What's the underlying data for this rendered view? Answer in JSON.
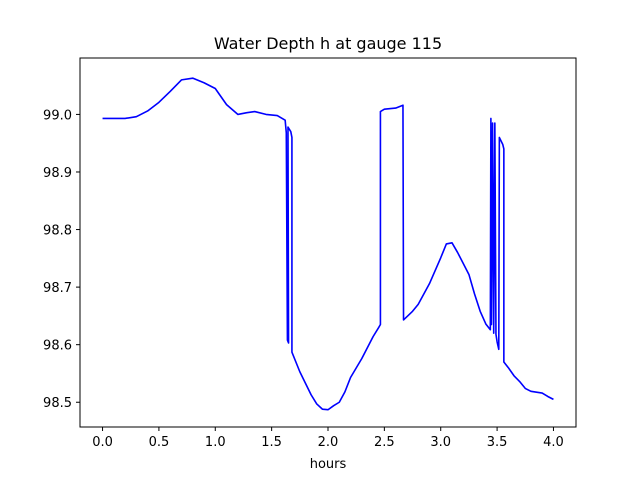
{
  "chart_data": {
    "type": "line",
    "title": "Water Depth h at gauge 115",
    "xlabel": "hours",
    "ylabel": "",
    "xlim": [
      -0.2,
      4.2
    ],
    "ylim": [
      98.457,
      99.098
    ],
    "xticks": [
      0.0,
      0.5,
      1.0,
      1.5,
      2.0,
      2.5,
      3.0,
      3.5,
      4.0
    ],
    "xtick_labels": [
      "0.0",
      "0.5",
      "1.0",
      "1.5",
      "2.0",
      "2.5",
      "3.0",
      "3.5",
      "4.0"
    ],
    "yticks": [
      98.5,
      98.6,
      98.7,
      98.8,
      98.9,
      99.0
    ],
    "ytick_labels": [
      "98.5",
      "98.6",
      "98.7",
      "98.8",
      "98.9",
      "99.0"
    ],
    "grid": false,
    "series": [
      {
        "color": "#0000ff",
        "points": [
          [
            0.0,
            98.993
          ],
          [
            0.1,
            98.993
          ],
          [
            0.2,
            98.993
          ],
          [
            0.3,
            98.996
          ],
          [
            0.4,
            99.006
          ],
          [
            0.5,
            99.021
          ],
          [
            0.6,
            99.04
          ],
          [
            0.7,
            99.06
          ],
          [
            0.8,
            99.063
          ],
          [
            0.9,
            99.055
          ],
          [
            1.0,
            99.045
          ],
          [
            1.1,
            99.017
          ],
          [
            1.2,
            99.0
          ],
          [
            1.28,
            99.003
          ],
          [
            1.35,
            99.005
          ],
          [
            1.45,
            99.0
          ],
          [
            1.55,
            98.998
          ],
          [
            1.62,
            98.99
          ],
          [
            1.63,
            98.968
          ],
          [
            1.64,
            98.608
          ],
          [
            1.65,
            98.603
          ],
          [
            1.645,
            98.978
          ],
          [
            1.67,
            98.97
          ],
          [
            1.68,
            98.96
          ],
          [
            1.68,
            98.587
          ],
          [
            1.75,
            98.553
          ],
          [
            1.8,
            98.533
          ],
          [
            1.85,
            98.513
          ],
          [
            1.9,
            98.497
          ],
          [
            1.95,
            98.488
          ],
          [
            2.0,
            98.487
          ],
          [
            2.05,
            98.494
          ],
          [
            2.1,
            98.5
          ],
          [
            2.15,
            98.518
          ],
          [
            2.2,
            98.543
          ],
          [
            2.3,
            98.576
          ],
          [
            2.4,
            98.614
          ],
          [
            2.45,
            98.63
          ],
          [
            2.465,
            98.635
          ],
          [
            2.465,
            99.005
          ],
          [
            2.5,
            99.009
          ],
          [
            2.6,
            99.011
          ],
          [
            2.665,
            99.016
          ],
          [
            2.67,
            98.643
          ],
          [
            2.75,
            98.658
          ],
          [
            2.8,
            98.67
          ],
          [
            2.9,
            98.706
          ],
          [
            3.0,
            98.751
          ],
          [
            3.05,
            98.775
          ],
          [
            3.1,
            98.777
          ],
          [
            3.15,
            98.76
          ],
          [
            3.2,
            98.741
          ],
          [
            3.25,
            98.722
          ],
          [
            3.3,
            98.688
          ],
          [
            3.35,
            98.658
          ],
          [
            3.4,
            98.636
          ],
          [
            3.44,
            98.626
          ],
          [
            3.445,
            98.993
          ],
          [
            3.45,
            98.635
          ],
          [
            3.46,
            98.985
          ],
          [
            3.47,
            98.62
          ],
          [
            3.48,
            98.985
          ],
          [
            3.49,
            98.618
          ],
          [
            3.5,
            98.605
          ],
          [
            3.515,
            98.592
          ],
          [
            3.52,
            98.96
          ],
          [
            3.55,
            98.948
          ],
          [
            3.56,
            98.94
          ],
          [
            3.56,
            98.57
          ],
          [
            3.6,
            98.56
          ],
          [
            3.65,
            98.546
          ],
          [
            3.7,
            98.536
          ],
          [
            3.75,
            98.524
          ],
          [
            3.8,
            98.519
          ],
          [
            3.9,
            98.516
          ],
          [
            3.95,
            98.51
          ],
          [
            4.0,
            98.505
          ]
        ]
      }
    ]
  }
}
